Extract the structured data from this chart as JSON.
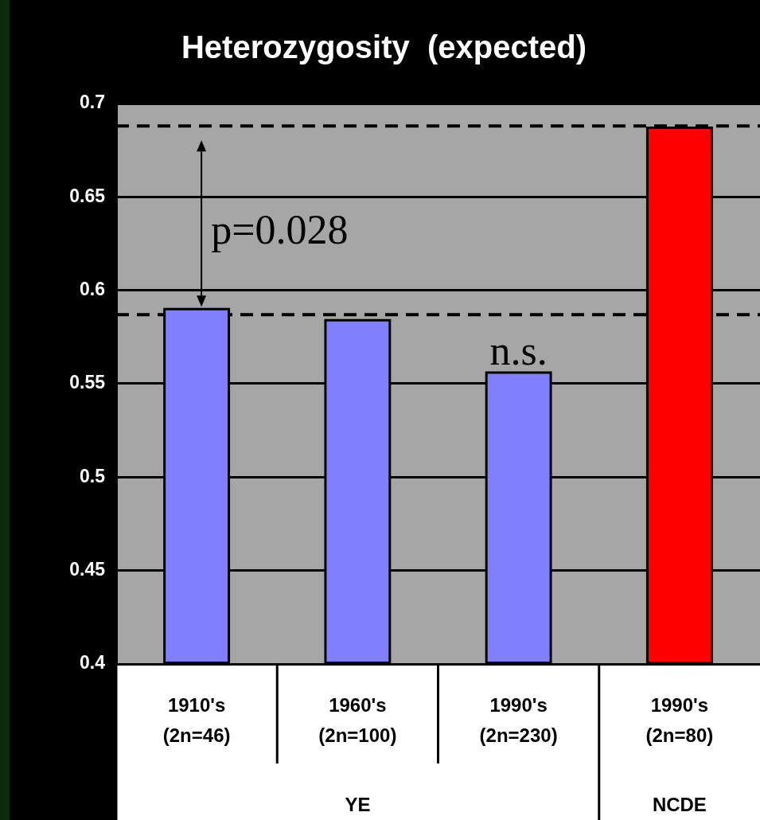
{
  "chart_data": {
    "type": "bar",
    "title": "Heterozygosity  (expected)",
    "categories": [
      "1910's\n(2n=46)",
      "1960's\n(2n=100)",
      "1990's\n(2n=230)",
      "1990's\n(2n=80)"
    ],
    "values": [
      0.59,
      0.584,
      0.556,
      0.687
    ],
    "colors": [
      "#8080ff",
      "#8080ff",
      "#8080ff",
      "#ff0000"
    ],
    "ylim": [
      0.4,
      0.7
    ],
    "yticks": [
      0.4,
      0.45,
      0.5,
      0.55,
      0.6,
      0.65,
      0.7
    ],
    "grid": "y",
    "legend": false,
    "ref_lines": [
      {
        "axis": "y",
        "value": 0.688,
        "line_style": "dashed",
        "color": "#000000"
      },
      {
        "axis": "y",
        "value": 0.587,
        "line_style": "dashed",
        "color": "#000000"
      }
    ],
    "annotations": [
      "p=0.028",
      {
        "text": "n.s.",
        "x": "1990's\n(2n=230)",
        "y": 0.556
      },
      "YE",
      "NCDE"
    ]
  }
}
